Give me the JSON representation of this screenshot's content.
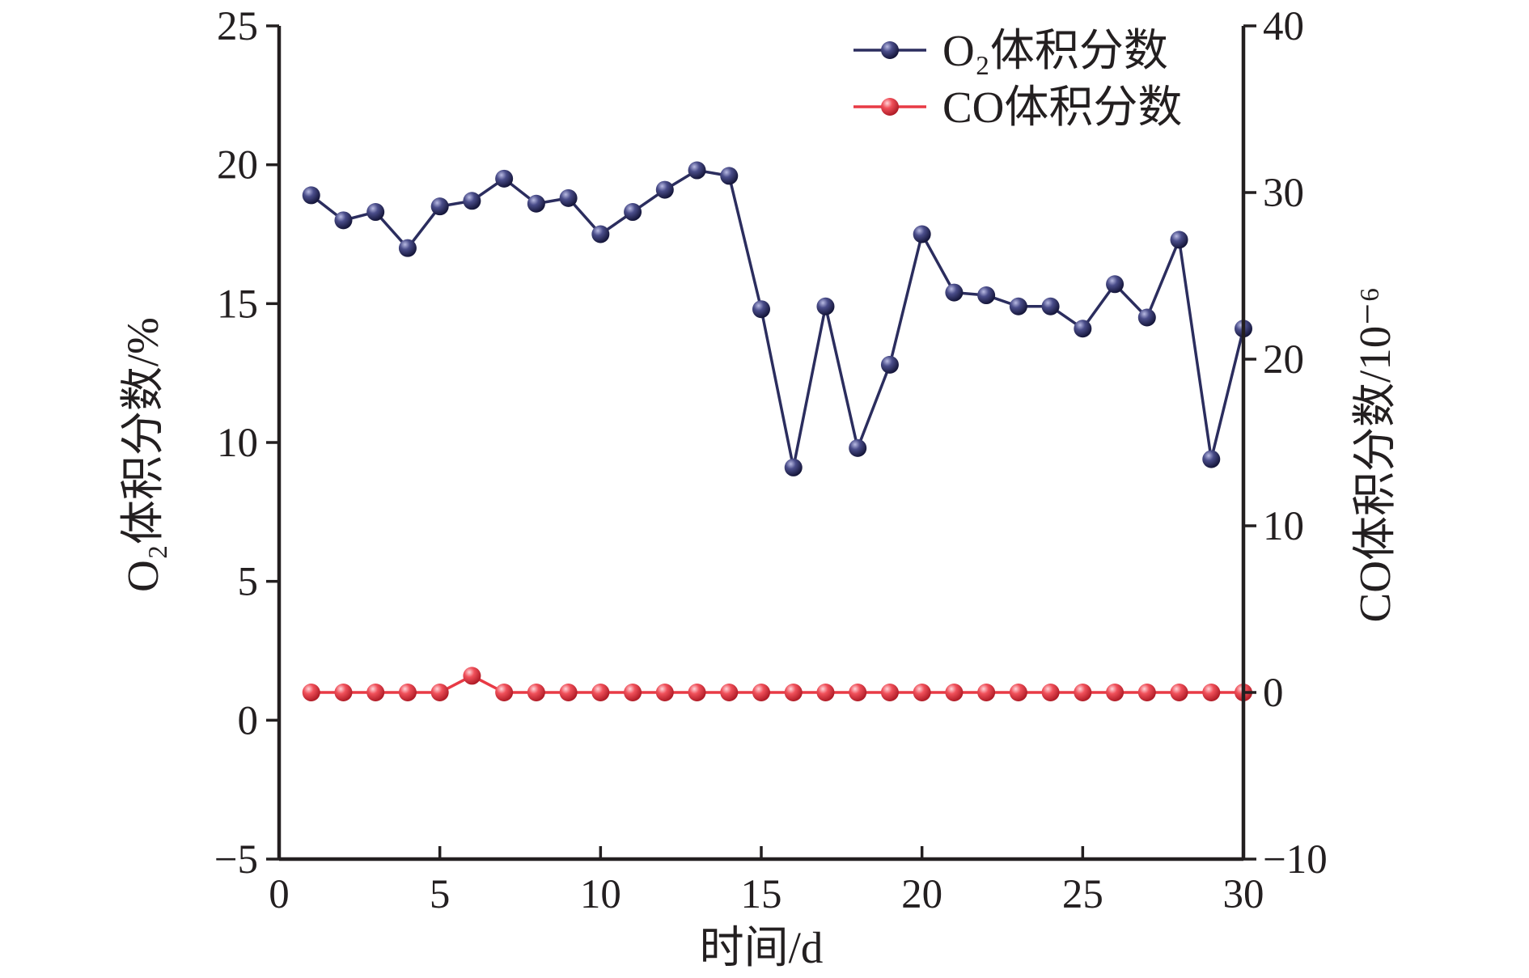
{
  "chart_data": {
    "type": "line",
    "xlabel": "时间/d",
    "ylabel_left": "O₂体积分数/%",
    "ylabel_right": "CO体积分数/10⁻⁶",
    "xlim": [
      0,
      30
    ],
    "ylim_left": [
      -5,
      25
    ],
    "ylim_right": [
      -10,
      40
    ],
    "x_ticks": [
      "0",
      "5",
      "10",
      "15",
      "20",
      "25",
      "30"
    ],
    "y_left_ticks": [
      "−5",
      "0",
      "5",
      "10",
      "15",
      "20",
      "25"
    ],
    "y_right_ticks": [
      "−10",
      "0",
      "10",
      "20",
      "30",
      "40"
    ],
    "grid": false,
    "legend_position": "top-right",
    "x": [
      1,
      2,
      3,
      4,
      5,
      6,
      7,
      8,
      9,
      10,
      11,
      12,
      13,
      14,
      15,
      16,
      17,
      18,
      19,
      20,
      21,
      22,
      23,
      24,
      25,
      26,
      27,
      28,
      29,
      30
    ],
    "series": [
      {
        "name": "O₂体积分数",
        "axis": "left",
        "color": "#2b2d5e",
        "values": [
          18.9,
          18.0,
          18.3,
          17.0,
          18.5,
          18.7,
          19.5,
          18.6,
          18.8,
          17.5,
          18.3,
          19.1,
          19.8,
          19.6,
          14.8,
          9.1,
          14.9,
          9.8,
          12.8,
          17.5,
          15.4,
          15.3,
          14.9,
          14.9,
          14.1,
          15.7,
          14.5,
          17.3,
          9.4,
          14.1
        ]
      },
      {
        "name": "CO体积分数",
        "axis": "right",
        "color": "#e83a45",
        "values": [
          0,
          0,
          0,
          0,
          0,
          1,
          0,
          0,
          0,
          0,
          0,
          0,
          0,
          0,
          0,
          0,
          0,
          0,
          0,
          0,
          0,
          0,
          0,
          0,
          0,
          0,
          0,
          0,
          0,
          0
        ]
      }
    ]
  }
}
